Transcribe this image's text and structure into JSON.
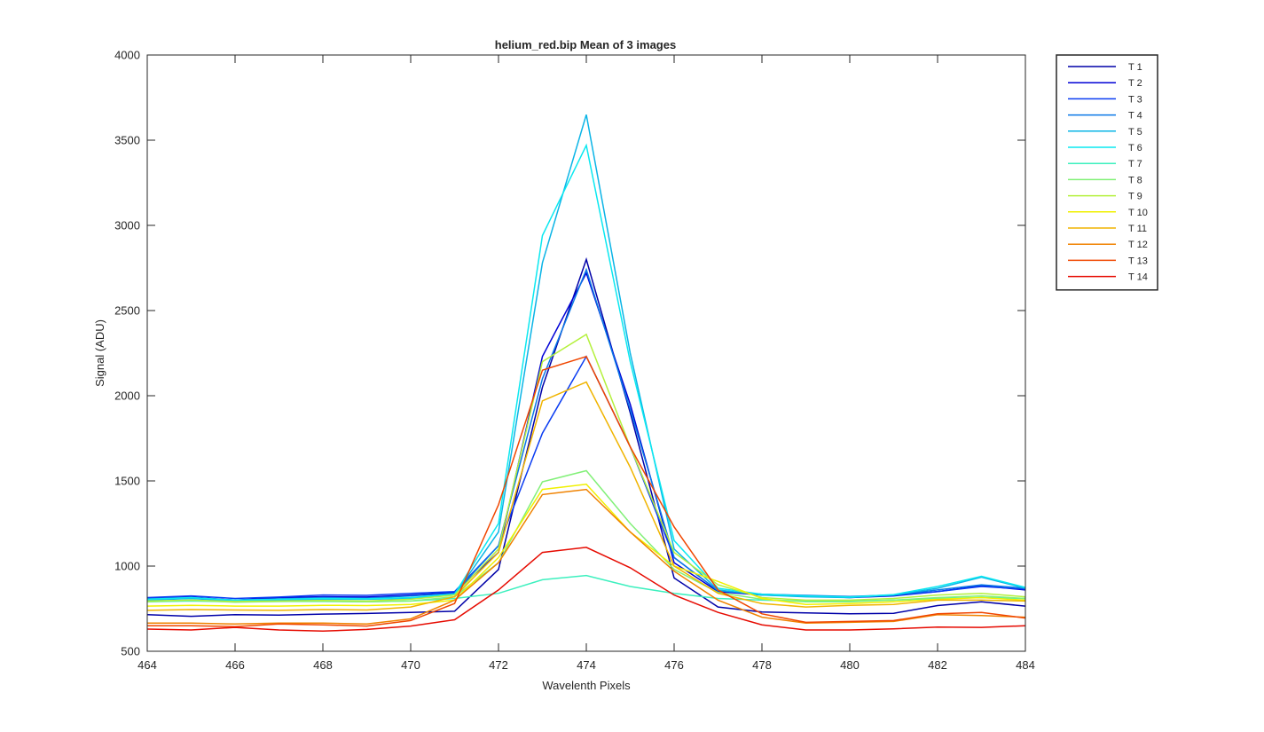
{
  "chart_data": {
    "type": "line",
    "title": "helium_red.bip  Mean of 3 images",
    "xlabel": "Wavelenth Pixels",
    "ylabel": "Signal (ADU)",
    "xlim": [
      464,
      484
    ],
    "ylim": [
      500,
      4000
    ],
    "xticks": [
      464,
      466,
      468,
      470,
      472,
      474,
      476,
      478,
      480,
      482,
      484
    ],
    "yticks": [
      500,
      1000,
      1500,
      2000,
      2500,
      3000,
      3500,
      4000
    ],
    "grid": false,
    "legend_position": "outside-top-right",
    "x": [
      464,
      465,
      466,
      467,
      468,
      469,
      470,
      471,
      472,
      473,
      474,
      475,
      476,
      477,
      478,
      479,
      480,
      481,
      482,
      483,
      484
    ],
    "series": [
      {
        "name": "T 1",
        "color": "#0000A8",
        "values": [
          715,
          705,
          715,
          712,
          718,
          722,
          728,
          735,
          980,
          2050,
          2800,
          1900,
          930,
          760,
          730,
          725,
          720,
          723,
          768,
          790,
          765
        ]
      },
      {
        "name": "T 2",
        "color": "#0000D6",
        "values": [
          810,
          818,
          800,
          815,
          820,
          818,
          830,
          845,
          1080,
          2230,
          2720,
          1950,
          1020,
          850,
          830,
          825,
          815,
          825,
          850,
          885,
          860
        ]
      },
      {
        "name": "T 3",
        "color": "#0A3CF2",
        "values": [
          815,
          825,
          810,
          818,
          830,
          828,
          840,
          850,
          1120,
          1780,
          2230,
          1700,
          1050,
          855,
          835,
          825,
          820,
          828,
          850,
          880,
          865
        ]
      },
      {
        "name": "T 4",
        "color": "#0A78E6",
        "values": [
          808,
          815,
          800,
          808,
          815,
          812,
          825,
          840,
          1120,
          2100,
          2740,
          1920,
          1050,
          855,
          835,
          828,
          822,
          830,
          860,
          890,
          870
        ]
      },
      {
        "name": "T 5",
        "color": "#0AB4E6",
        "values": [
          800,
          810,
          795,
          800,
          805,
          805,
          810,
          830,
          1200,
          2780,
          3650,
          2250,
          1100,
          860,
          830,
          820,
          815,
          830,
          870,
          935,
          870
        ]
      },
      {
        "name": "T 6",
        "color": "#0AE8F0",
        "values": [
          805,
          815,
          800,
          805,
          810,
          808,
          815,
          835,
          1250,
          2940,
          3470,
          2200,
          1150,
          870,
          835,
          825,
          818,
          833,
          880,
          940,
          875
        ]
      },
      {
        "name": "T 7",
        "color": "#3CF0BE",
        "values": [
          790,
          795,
          790,
          792,
          792,
          790,
          795,
          810,
          840,
          920,
          945,
          880,
          840,
          810,
          800,
          795,
          795,
          800,
          810,
          815,
          810
        ]
      },
      {
        "name": "T 8",
        "color": "#82F078",
        "values": [
          790,
          800,
          788,
          792,
          795,
          790,
          795,
          820,
          1020,
          1495,
          1560,
          1250,
          980,
          845,
          805,
          790,
          790,
          800,
          815,
          825,
          810
        ]
      },
      {
        "name": "T 9",
        "color": "#B4F03C",
        "values": [
          795,
          800,
          792,
          795,
          798,
          795,
          805,
          830,
          1100,
          2200,
          2360,
          1700,
          1080,
          890,
          815,
          800,
          800,
          810,
          830,
          840,
          820
        ]
      },
      {
        "name": "T 10",
        "color": "#F0F000",
        "values": [
          765,
          770,
          765,
          765,
          770,
          768,
          775,
          800,
          1050,
          1450,
          1480,
          1200,
          1000,
          910,
          810,
          775,
          780,
          790,
          805,
          815,
          800
        ]
      },
      {
        "name": "T 11",
        "color": "#F0B400",
        "values": [
          740,
          745,
          742,
          740,
          745,
          742,
          760,
          820,
          1080,
          1970,
          2080,
          1580,
          1000,
          840,
          780,
          760,
          770,
          775,
          800,
          800,
          795
        ]
      },
      {
        "name": "T 12",
        "color": "#F08200",
        "values": [
          665,
          665,
          660,
          665,
          665,
          660,
          690,
          800,
          1020,
          1420,
          1450,
          1200,
          970,
          800,
          700,
          665,
          670,
          675,
          715,
          710,
          700
        ]
      },
      {
        "name": "T 13",
        "color": "#F04600",
        "values": [
          650,
          650,
          645,
          660,
          655,
          648,
          680,
          780,
          1360,
          2150,
          2230,
          1700,
          1230,
          860,
          720,
          670,
          675,
          680,
          720,
          728,
          695
        ]
      },
      {
        "name": "T 14",
        "color": "#E60A00",
        "values": [
          630,
          625,
          640,
          625,
          618,
          628,
          648,
          685,
          860,
          1080,
          1110,
          990,
          830,
          728,
          655,
          625,
          625,
          632,
          642,
          640,
          650
        ]
      }
    ]
  }
}
